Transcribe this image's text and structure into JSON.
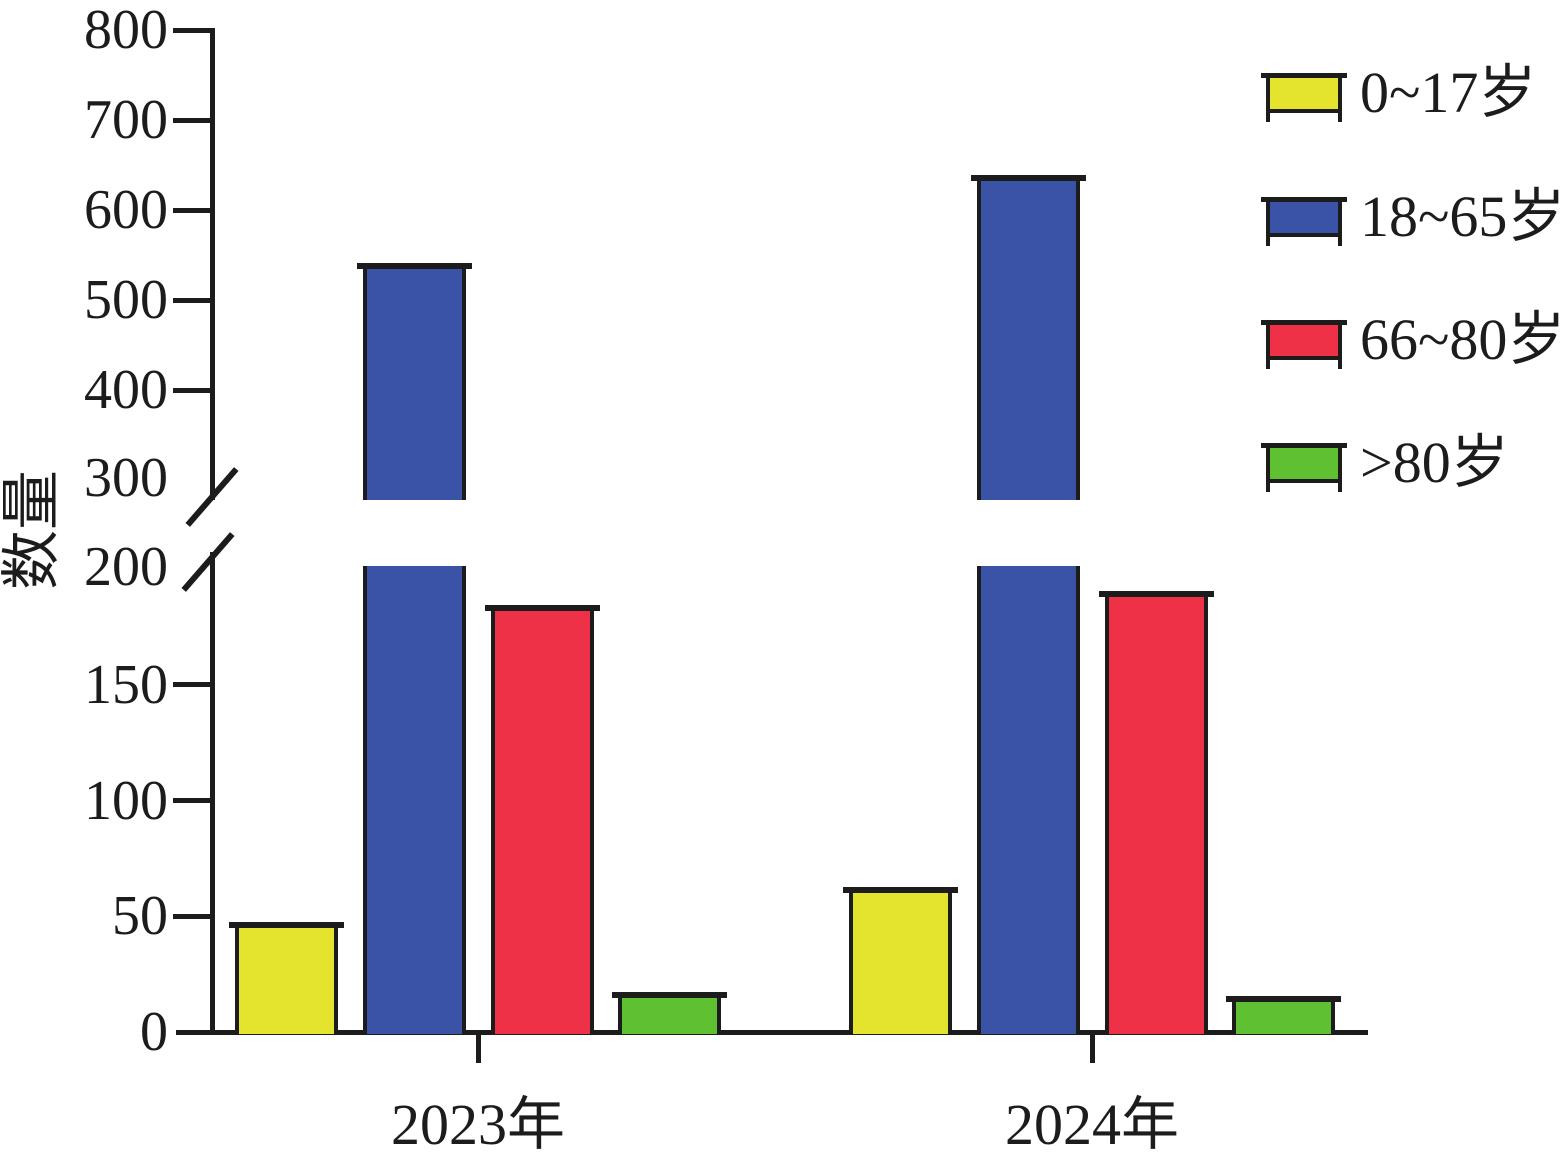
{
  "chart_data": {
    "type": "bar",
    "title": "",
    "xlabel": "",
    "ylabel": "数量",
    "categories": [
      "2023年",
      "2024年"
    ],
    "series": [
      {
        "name": "0~17岁",
        "color": "#e4e42e",
        "values": [
          47,
          62
        ]
      },
      {
        "name": "18~65岁",
        "color": "#3a53a7",
        "values": [
          540,
          638
        ]
      },
      {
        "name": "66~80岁",
        "color": "#ee3147",
        "values": [
          184,
          190
        ]
      },
      {
        "name": ">80岁",
        "color": "#5fc132",
        "values": [
          17,
          15
        ]
      }
    ],
    "axis": {
      "lower_ticks": [
        0,
        50,
        100,
        150,
        200
      ],
      "upper_ticks": [
        300,
        400,
        500,
        600,
        700,
        800
      ],
      "lower_range": [
        0,
        200
      ],
      "upper_range": [
        300,
        800
      ],
      "broken_axis": true,
      "break_between": [
        200,
        300
      ]
    },
    "legend_position": "top-right",
    "grid": false,
    "ink_color": "#1c1c1c"
  }
}
